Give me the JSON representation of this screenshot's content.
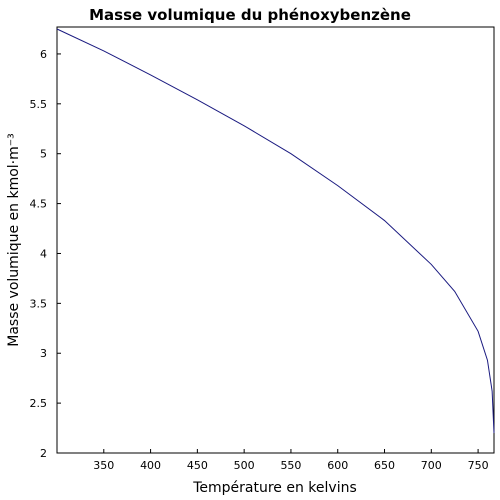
{
  "chart_data": {
    "type": "line",
    "title": "Masse volumique du phénoxybenzène",
    "xlabel": "Température en kelvins",
    "ylabel": "Masse volumique en kmol·m⁻³",
    "xlim": [
      300,
      767
    ],
    "ylim": [
      2,
      6.27
    ],
    "xticks": [
      350,
      400,
      450,
      500,
      550,
      600,
      650,
      700,
      750
    ],
    "yticks": [
      2,
      2.5,
      3,
      3.5,
      4,
      4.5,
      5,
      5.5,
      6
    ],
    "grid": false,
    "line_color": "#1a1a80",
    "series": [
      {
        "x": [
          300,
          350,
          400,
          450,
          500,
          550,
          600,
          650,
          700,
          725,
          750,
          760,
          765,
          767
        ],
        "y": [
          6.25,
          6.03,
          5.79,
          5.54,
          5.28,
          5.0,
          4.68,
          4.33,
          3.89,
          3.62,
          3.22,
          2.93,
          2.62,
          2.2
        ]
      }
    ]
  }
}
